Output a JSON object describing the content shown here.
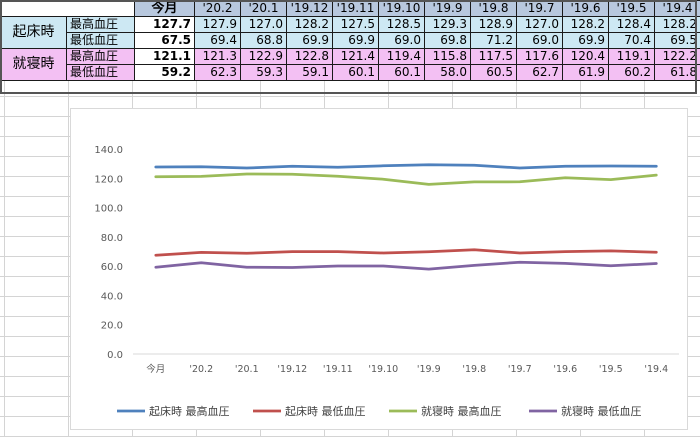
{
  "table": {
    "headers": [
      "今月",
      "'20.2",
      "'20.1",
      "'19.12",
      "'19.11",
      "'19.10",
      "'19.9",
      "'19.8",
      "'19.7",
      "'19.6",
      "'19.5",
      "'19.4"
    ],
    "groups": [
      {
        "name": "起床時",
        "rows": [
          {
            "label": "最高血圧",
            "values": [
              "127.7",
              "127.9",
              "127.0",
              "128.2",
              "127.5",
              "128.5",
              "129.3",
              "128.9",
              "127.0",
              "128.2",
              "128.4",
              "128.2"
            ]
          },
          {
            "label": "最低血圧",
            "values": [
              "67.5",
              "69.4",
              "68.8",
              "69.9",
              "69.9",
              "69.0",
              "69.8",
              "71.2",
              "69.0",
              "69.9",
              "70.4",
              "69.5"
            ]
          }
        ]
      },
      {
        "name": "就寝時",
        "rows": [
          {
            "label": "最高血圧",
            "values": [
              "121.1",
              "121.3",
              "122.9",
              "122.8",
              "121.4",
              "119.4",
              "115.8",
              "117.5",
              "117.6",
              "120.4",
              "119.1",
              "122.2"
            ]
          },
          {
            "label": "最低血圧",
            "values": [
              "59.2",
              "62.3",
              "59.3",
              "59.1",
              "60.1",
              "60.1",
              "58.0",
              "60.5",
              "62.7",
              "61.9",
              "60.2",
              "61.8"
            ]
          }
        ]
      }
    ]
  },
  "chart_data": {
    "type": "line",
    "categories": [
      "今月",
      "'20.2",
      "'20.1",
      "'19.12",
      "'19.11",
      "'19.10",
      "'19.9",
      "'19.8",
      "'19.7",
      "'19.6",
      "'19.5",
      "'19.4"
    ],
    "ylim": [
      0,
      140
    ],
    "yticks": [
      "0.0",
      "20.0",
      "40.0",
      "60.0",
      "80.0",
      "100.0",
      "120.0",
      "140.0"
    ],
    "legend_position": "bottom",
    "grid": false,
    "series": [
      {
        "name": "起床時 最高血圧",
        "color": "#4f81bd",
        "values": [
          127.7,
          127.9,
          127.0,
          128.2,
          127.5,
          128.5,
          129.3,
          128.9,
          127.0,
          128.2,
          128.4,
          128.2
        ]
      },
      {
        "name": "起床時 最低血圧",
        "color": "#c0504d",
        "values": [
          67.5,
          69.4,
          68.8,
          69.9,
          69.9,
          69.0,
          69.8,
          71.2,
          69.0,
          69.9,
          70.4,
          69.5
        ]
      },
      {
        "name": "就寝時 最高血圧",
        "color": "#9bbb59",
        "values": [
          121.1,
          121.3,
          122.9,
          122.8,
          121.4,
          119.4,
          115.8,
          117.5,
          117.6,
          120.4,
          119.1,
          122.2
        ]
      },
      {
        "name": "就寝時 最低血圧",
        "color": "#8064a2",
        "values": [
          59.2,
          62.3,
          59.3,
          59.1,
          60.1,
          60.1,
          58.0,
          60.5,
          62.7,
          61.9,
          60.2,
          61.8
        ]
      }
    ]
  }
}
